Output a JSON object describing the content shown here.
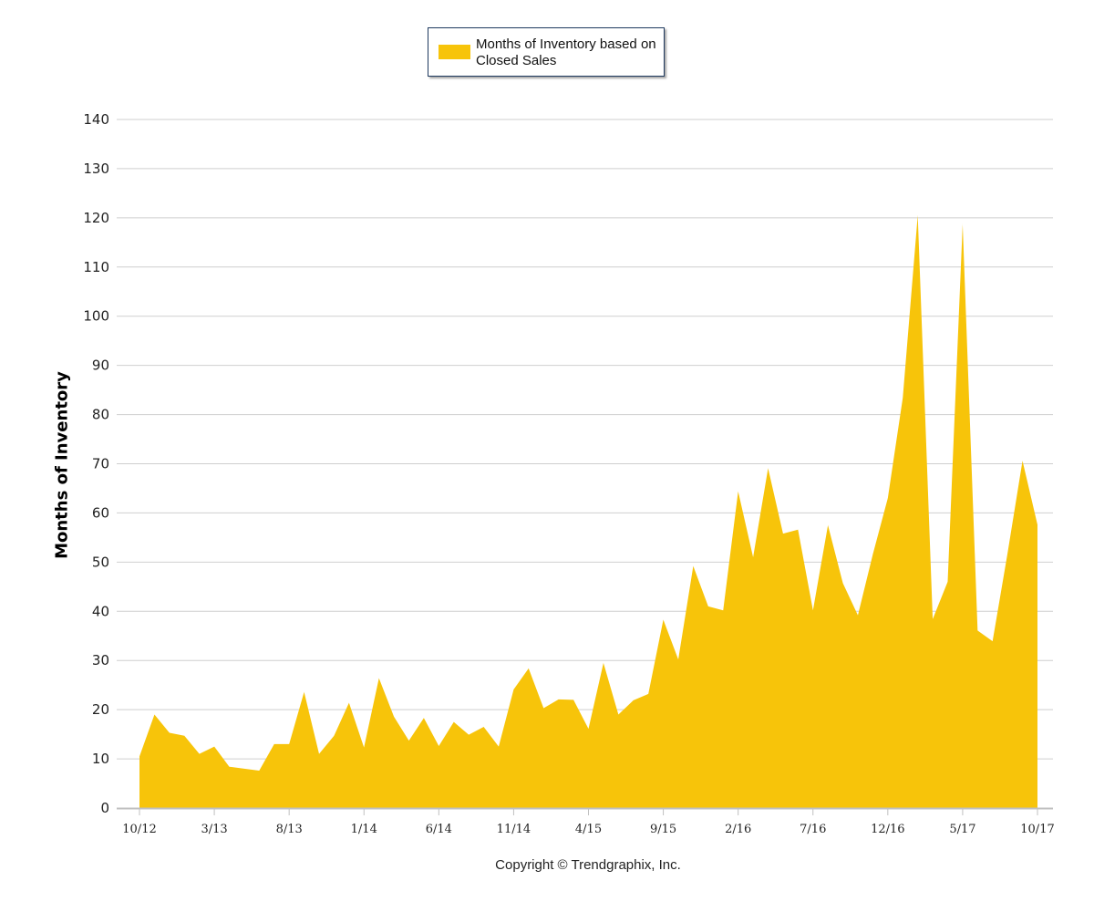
{
  "legend": {
    "label": "Months of Inventory based on Closed Sales",
    "color": "#f7c40a"
  },
  "ylabel": "Months of Inventory",
  "copyright": "Copyright © Trendgraphix, Inc.",
  "chart_data": {
    "type": "area",
    "title": "",
    "xlabel": "",
    "ylabel": "Months of Inventory",
    "ylim": [
      0,
      140
    ],
    "yticks": [
      0,
      10,
      20,
      30,
      40,
      50,
      60,
      70,
      80,
      90,
      100,
      110,
      120,
      130,
      140
    ],
    "grid": true,
    "legend_position": "top-center",
    "x_tick_labels": [
      "10/12",
      "3/13",
      "8/13",
      "1/14",
      "6/14",
      "11/14",
      "4/15",
      "9/15",
      "2/16",
      "7/16",
      "12/16",
      "5/17",
      "10/17"
    ],
    "x": [
      "10/12",
      "11/12",
      "12/12",
      "1/13",
      "2/13",
      "3/13",
      "4/13",
      "5/13",
      "6/13",
      "7/13",
      "8/13",
      "9/13",
      "10/13",
      "11/13",
      "12/13",
      "1/14",
      "2/14",
      "3/14",
      "4/14",
      "5/14",
      "6/14",
      "7/14",
      "8/14",
      "9/14",
      "10/14",
      "11/14",
      "12/14",
      "1/15",
      "2/15",
      "3/15",
      "4/15",
      "5/15",
      "6/15",
      "7/15",
      "8/15",
      "9/15",
      "10/15",
      "11/15",
      "12/15",
      "1/16",
      "2/16",
      "3/16",
      "4/16",
      "5/16",
      "6/16",
      "7/16",
      "8/16",
      "9/16",
      "10/16",
      "11/16",
      "12/16",
      "1/17",
      "2/17",
      "3/17",
      "4/17",
      "5/17",
      "6/17",
      "7/17",
      "8/17",
      "9/17",
      "10/17"
    ],
    "series": [
      {
        "name": "Months of Inventory based on Closed Sales",
        "color": "#f7c40a",
        "values": [
          10.5,
          19,
          15.3,
          14.7,
          11,
          12.5,
          8.4,
          8,
          7.6,
          13,
          13,
          23.6,
          11,
          14.7,
          21.4,
          12.3,
          26.4,
          18.6,
          13.7,
          18.3,
          12.6,
          17.5,
          14.9,
          16.5,
          12.5,
          24.1,
          28.4,
          20.3,
          22.1,
          22,
          16.1,
          29.5,
          19,
          21.9,
          23.2,
          38.3,
          30.2,
          49.2,
          41,
          40.2,
          64.4,
          51,
          69.1,
          55.8,
          56.6,
          40.2,
          57.5,
          45.7,
          39.2,
          51.6,
          63,
          83.4,
          120.5,
          38.4,
          46,
          118.7,
          36.1,
          33.9,
          51.8,
          70.6,
          57.6
        ]
      }
    ]
  }
}
